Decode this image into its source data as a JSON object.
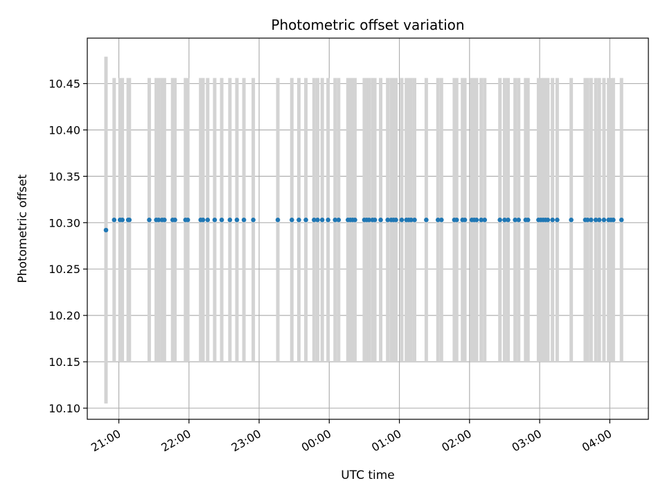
{
  "chart_data": {
    "type": "scatter",
    "title": "Photometric offset variation",
    "xlabel": "UTC time",
    "ylabel": "Photometric offset",
    "grid": true,
    "xlim": [
      "20:33",
      "04:33"
    ],
    "ylim": [
      10.088,
      10.499
    ],
    "x_ticks": [
      "21:00",
      "22:00",
      "23:00",
      "00:00",
      "01:00",
      "02:00",
      "03:00",
      "04:00"
    ],
    "y_ticks": [
      "10.10",
      "10.15",
      "10.20",
      "10.25",
      "10.30",
      "10.35",
      "10.40",
      "10.45"
    ],
    "colors": {
      "point": "#1f77b4",
      "errorbar": "#d3d3d3",
      "grid": "#b0b0b0"
    },
    "first_point": {
      "x": "20:49",
      "y": 10.292,
      "yerr": 0.187
    },
    "y_common": 10.303,
    "yerr_common": 0.153,
    "x": [
      "20:56",
      "21:01",
      "21:03",
      "21:08",
      "21:09",
      "21:26",
      "21:32",
      "21:34",
      "21:37",
      "21:39",
      "21:46",
      "21:48",
      "21:57",
      "21:59",
      "22:10",
      "22:12",
      "22:16",
      "22:22",
      "22:28",
      "22:35",
      "22:41",
      "22:47",
      "22:55",
      "23:16",
      "23:28",
      "23:34",
      "23:40",
      "23:47",
      "23:50",
      "23:54",
      "23:59",
      "24:05",
      "24:08",
      "24:16",
      "24:18",
      "24:20",
      "24:22",
      "24:30",
      "24:32",
      "24:34",
      "24:37",
      "24:39",
      "24:44",
      "24:50",
      "24:53",
      "24:55",
      "24:57",
      "25:02",
      "25:06",
      "25:08",
      "25:10",
      "25:13",
      "25:23",
      "25:33",
      "25:36",
      "25:47",
      "25:49",
      "25:54",
      "25:56",
      "26:02",
      "26:04",
      "26:06",
      "26:10",
      "26:13",
      "26:26",
      "26:30",
      "26:33",
      "26:39",
      "26:42",
      "26:48",
      "26:50",
      "26:59",
      "27:01",
      "27:03",
      "27:05",
      "27:07",
      "27:11",
      "27:15",
      "27:27",
      "27:39",
      "27:41",
      "27:44",
      "27:48",
      "27:51",
      "27:55",
      "27:59",
      "28:01",
      "28:03",
      "28:10"
    ]
  }
}
